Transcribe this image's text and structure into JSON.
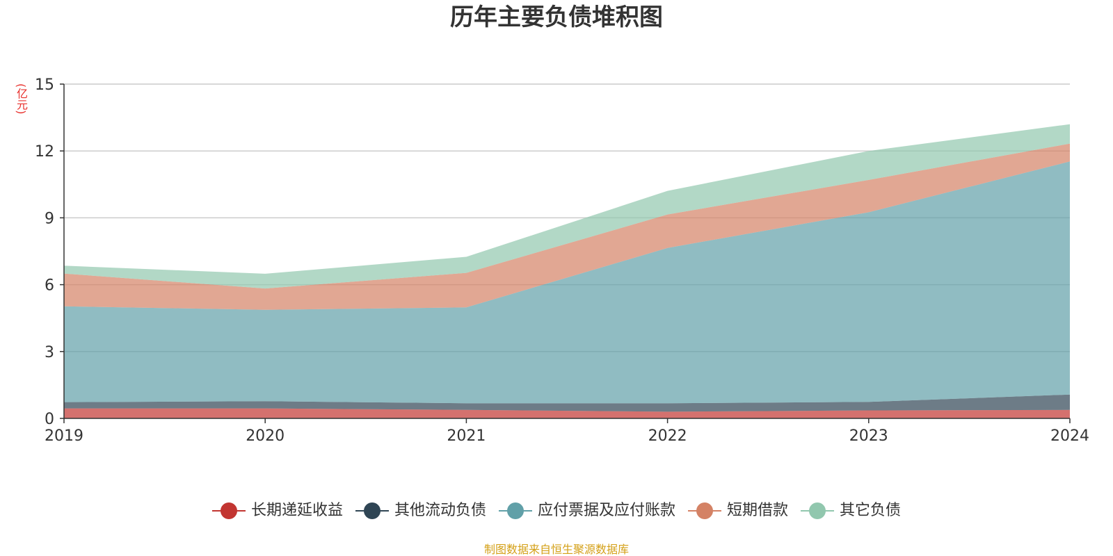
{
  "title": "历年主要负债堆积图",
  "unit": "(亿元)",
  "source_note": "制图数据来自恒生聚源数据库",
  "chart_data": {
    "type": "area",
    "stacked": true,
    "title": "历年主要负债堆积图",
    "ylabel": "(亿元)",
    "x": [
      "2019",
      "2020",
      "2021",
      "2022",
      "2023",
      "2024"
    ],
    "ylim": [
      0,
      15
    ],
    "yticks": [
      0,
      3,
      6,
      9,
      12,
      15
    ],
    "grid": true,
    "legend_position": "bottom",
    "series": [
      {
        "name": "长期递延收益",
        "color": "#c23531",
        "values": [
          0.45,
          0.45,
          0.38,
          0.3,
          0.36,
          0.38
        ]
      },
      {
        "name": "其他流动负债",
        "color": "#2f4554",
        "values": [
          0.28,
          0.32,
          0.3,
          0.38,
          0.38,
          0.69
        ]
      },
      {
        "name": "应付票据及应付账款",
        "color": "#61a0a8",
        "values": [
          4.3,
          4.1,
          4.3,
          6.97,
          8.51,
          10.46
        ]
      },
      {
        "name": "短期借款",
        "color": "#d48265",
        "values": [
          1.47,
          0.96,
          1.55,
          1.5,
          1.45,
          0.8
        ]
      },
      {
        "name": "其它负债",
        "color": "#91c7ae",
        "values": [
          0.35,
          0.66,
          0.72,
          1.06,
          1.3,
          0.87
        ]
      }
    ]
  }
}
